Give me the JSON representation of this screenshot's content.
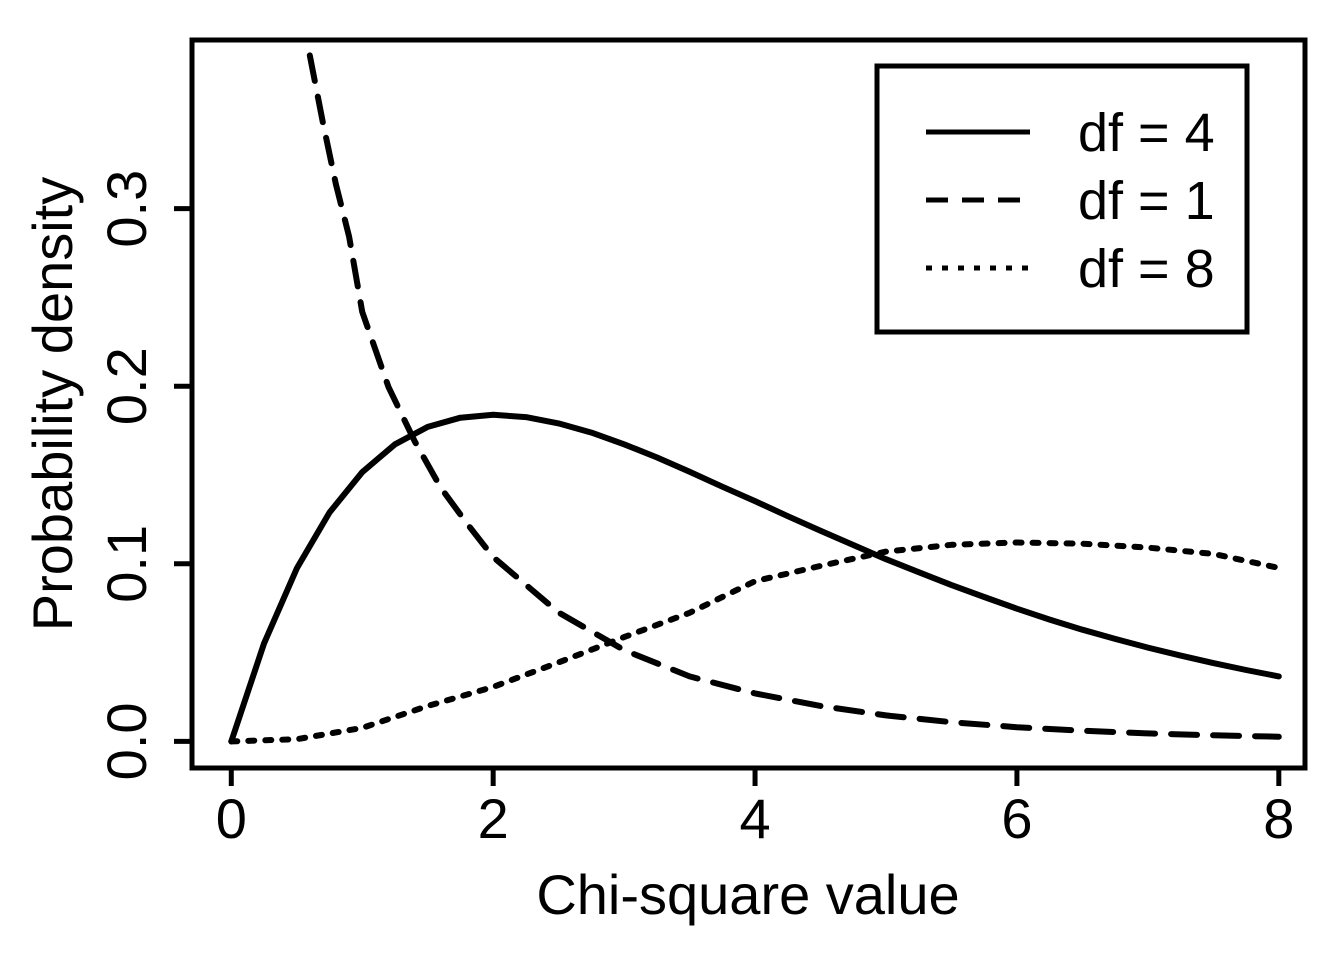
{
  "chart_data": {
    "type": "line",
    "title": "",
    "xlabel": "Chi-square value",
    "ylabel": "Probability density",
    "xlim": [
      -0.3,
      8.2
    ],
    "ylim": [
      -0.015,
      0.395
    ],
    "x_ticks": [
      0,
      2,
      4,
      6,
      8
    ],
    "x_tick_labels": [
      "0",
      "2",
      "4",
      "6",
      "8"
    ],
    "y_ticks": [
      0.0,
      0.1,
      0.2,
      0.3
    ],
    "y_tick_labels": [
      "0.0",
      "0.1",
      "0.2",
      "0.3"
    ],
    "grid": false,
    "legend_position": "top-right",
    "line_color": "#000000",
    "series": [
      {
        "name": "df = 4",
        "line_style": "solid",
        "x": [
          0,
          0.25,
          0.5,
          0.75,
          1,
          1.25,
          1.5,
          1.75,
          2,
          2.25,
          2.5,
          2.75,
          3,
          3.25,
          3.5,
          3.75,
          4,
          4.25,
          4.5,
          4.75,
          5,
          5.25,
          5.5,
          5.75,
          6,
          6.25,
          6.5,
          6.75,
          7,
          7.25,
          7.5,
          7.75,
          8
        ],
        "y": [
          0,
          0.0551,
          0.0974,
          0.1289,
          0.1516,
          0.1673,
          0.1771,
          0.1823,
          0.1839,
          0.1826,
          0.1791,
          0.1739,
          0.1673,
          0.1599,
          0.1518,
          0.1434,
          0.1353,
          0.1268,
          0.1186,
          0.1106,
          0.1026,
          0.0953,
          0.088,
          0.0813,
          0.0747,
          0.0686,
          0.0629,
          0.0577,
          0.0528,
          0.0483,
          0.0441,
          0.0402,
          0.0366
        ]
      },
      {
        "name": "df = 1",
        "line_style": "dashed",
        "x": [
          0.6,
          0.7,
          0.8,
          0.9,
          1.0,
          1.2,
          1.4,
          1.6,
          1.8,
          2.0,
          2.5,
          3.0,
          3.5,
          4.0,
          4.5,
          5.0,
          5.5,
          6.0,
          6.5,
          7.0,
          7.5,
          8.0
        ],
        "y": [
          0.3863,
          0.3485,
          0.3135,
          0.2843,
          0.242,
          0.1997,
          0.1691,
          0.1428,
          0.1227,
          0.1038,
          0.0726,
          0.0514,
          0.0366,
          0.027,
          0.0199,
          0.0146,
          0.0108,
          0.008,
          0.006,
          0.0045,
          0.0034,
          0.0026
        ]
      },
      {
        "name": "df = 8",
        "line_style": "dotted",
        "x": [
          0,
          0.5,
          1,
          1.5,
          2,
          2.5,
          3,
          3.5,
          4,
          4.5,
          5,
          5.5,
          6,
          6.5,
          7,
          7.5,
          8
        ],
        "y": [
          0,
          0.0012,
          0.0076,
          0.0199,
          0.0307,
          0.0445,
          0.0587,
          0.0724,
          0.0902,
          0.0988,
          0.1069,
          0.1107,
          0.112,
          0.1113,
          0.1091,
          0.1056,
          0.0977
        ]
      }
    ]
  }
}
